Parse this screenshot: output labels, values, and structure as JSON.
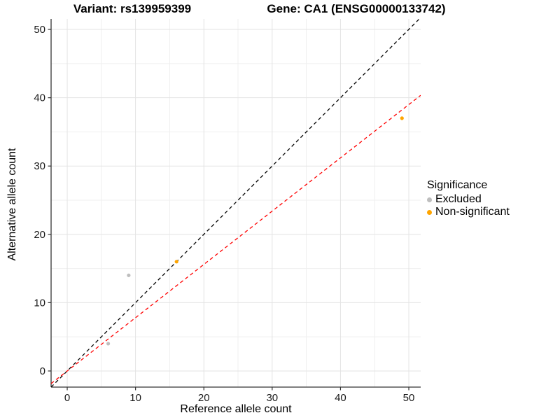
{
  "header": {
    "title_left": "Variant: rs139959399",
    "title_right": "Gene: CA1 (ENSG00000133742)"
  },
  "chart_data": {
    "type": "scatter",
    "xlabel": "Reference allele count",
    "ylabel": "Alternative allele count",
    "xlim": [
      -2.36,
      51.74
    ],
    "ylim": [
      -2.36,
      51.54
    ],
    "x_ticks": [
      0,
      10,
      20,
      30,
      40,
      50
    ],
    "y_ticks": [
      0,
      10,
      20,
      30,
      40,
      50
    ],
    "x_minor_ticks": [
      5,
      15,
      25,
      35,
      45
    ],
    "y_minor_ticks": [
      5,
      15,
      25,
      35,
      45
    ],
    "grid": true,
    "points": [
      {
        "x": 6,
        "y": 4,
        "group": "Excluded"
      },
      {
        "x": 9,
        "y": 14,
        "group": "Excluded"
      },
      {
        "x": 16,
        "y": 16,
        "group": "Non-significant"
      },
      {
        "x": 49,
        "y": 37,
        "group": "Non-significant"
      }
    ],
    "lines": [
      {
        "name": "identity-line",
        "slope": 1,
        "intercept": 0,
        "color": "#000000",
        "style": "dashed"
      },
      {
        "name": "regression-line",
        "slope": 0.78,
        "intercept": 0,
        "color": "#FF0000",
        "style": "dashed"
      }
    ],
    "legend": {
      "title": "Significance",
      "position": "right",
      "entries": [
        {
          "label": "Excluded",
          "color": "#BEBEBE"
        },
        {
          "label": "Non-significant",
          "color": "#FFA500"
        }
      ]
    },
    "colors": {
      "Excluded": "#BEBEBE",
      "Non-significant": "#FFA500",
      "major_grid": "#E3E3E3",
      "minor_grid": "#EFEFEF",
      "axis_line": "#333333",
      "tick_text": "#1a1a1a"
    }
  }
}
